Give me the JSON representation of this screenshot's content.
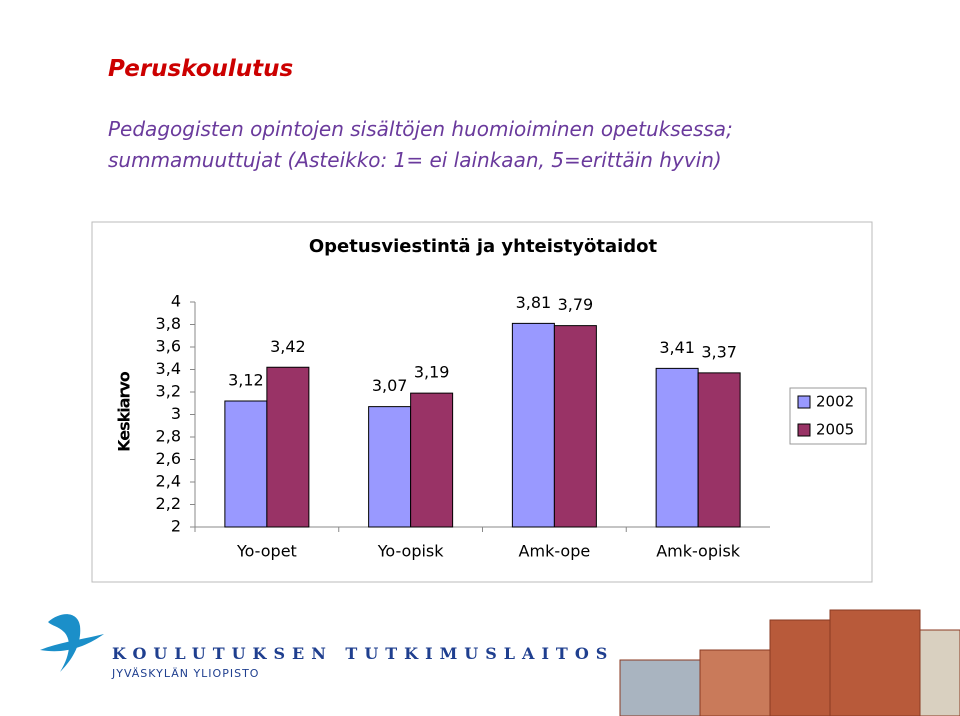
{
  "slide": {
    "title": "Peruskoulutus",
    "subtitle_lines": [
      "Pedagogisten opintojen sisältöjen huomioiminen opetuksessa;",
      "summamuuttujat (Asteikko: 1= ei lainkaan, 5=erittäin hyvin)"
    ]
  },
  "chart_data": {
    "type": "bar",
    "title": "Opetusviestintä ja yhteistyötaidot",
    "y_label": "Keskiarvo",
    "categories": [
      "Yo-opet",
      "Yo-opisk",
      "Amk-ope",
      "Amk-opisk"
    ],
    "series": [
      {
        "name": "2002",
        "color": "#9999ff",
        "values": [
          3.12,
          3.07,
          3.81,
          3.41
        ],
        "value_labels": [
          "3,12",
          "3,07",
          "3,81",
          "3,41"
        ]
      },
      {
        "name": "2005",
        "color": "#993366",
        "values": [
          3.42,
          3.19,
          3.79,
          3.37
        ],
        "value_labels": [
          "3,42",
          "3,19",
          "3,79",
          "3,37"
        ]
      }
    ],
    "ylim": [
      2,
      4
    ],
    "yticks": [
      2,
      {
        "value": 2.2,
        "label": "2,2"
      },
      {
        "value": 2.4,
        "label": "2,4"
      },
      {
        "value": 2.6,
        "label": "2,6"
      },
      {
        "value": 2.8,
        "label": "2,8"
      },
      3,
      {
        "value": 3.2,
        "label": "3,2"
      },
      {
        "value": 3.4,
        "label": "3,4"
      },
      {
        "value": 3.6,
        "label": "3,6"
      },
      {
        "value": 3.8,
        "label": "3,8"
      },
      4
    ],
    "grid": false,
    "legend": "right"
  },
  "footer": {
    "org": "KOULUTUKSEN TUTKIMUSLAITOS",
    "university": "JYVÄSKYLÄN YLIOPISTO"
  }
}
